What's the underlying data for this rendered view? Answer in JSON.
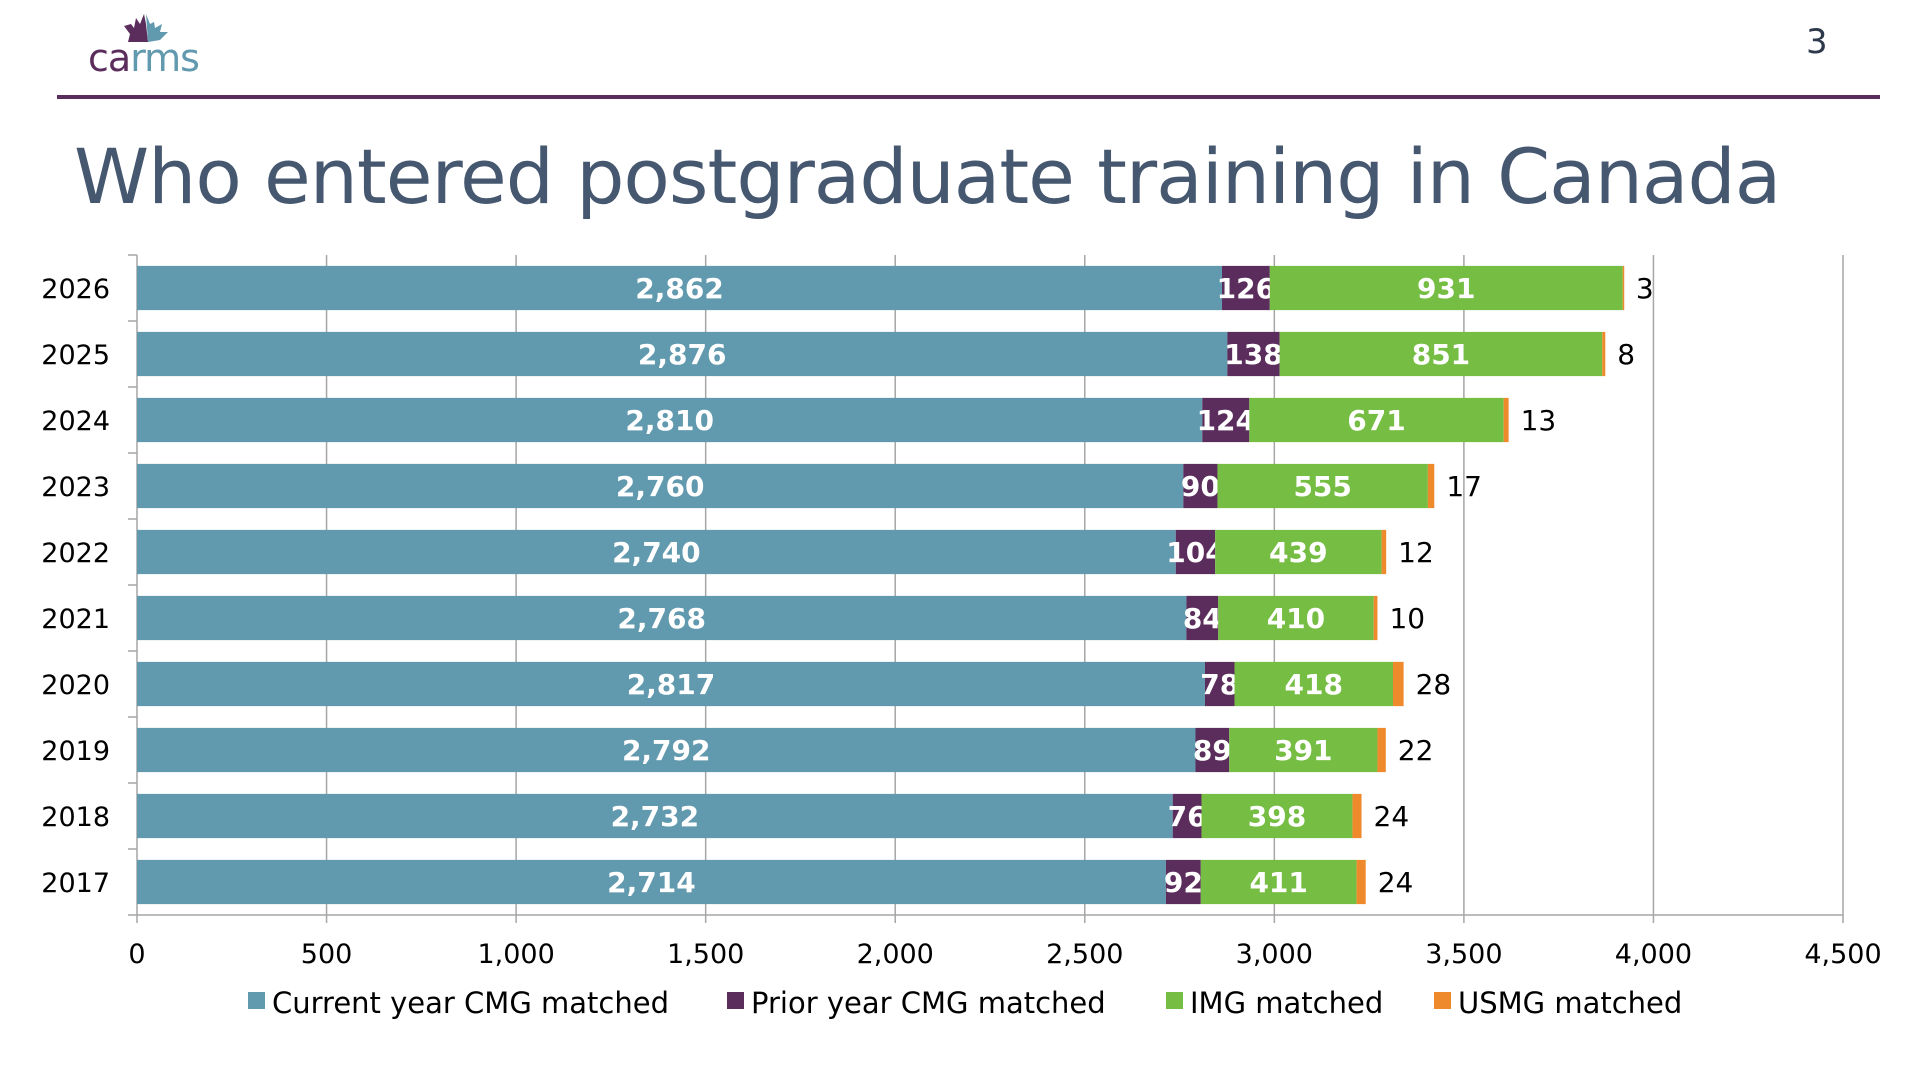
{
  "header": {
    "logo_text_a": "ca",
    "logo_text_b": "rms",
    "logo_icon": "maple-leaf-crown-icon",
    "page_number": "3",
    "title": "Who entered postgraduate training in Canada"
  },
  "colors": {
    "brand_purple": "#5B2D5C",
    "brand_teal": "#6199AE",
    "title": "#465770"
  },
  "chart_data": {
    "type": "bar",
    "orientation": "horizontal",
    "stacked": true,
    "title": "Who entered postgraduate training in Canada",
    "xlabel": "",
    "ylabel": "",
    "categories": [
      "2026",
      "2025",
      "2024",
      "2023",
      "2022",
      "2021",
      "2020",
      "2019",
      "2018",
      "2017"
    ],
    "series": [
      {
        "name": "Current year CMG matched",
        "color": "#6199AE",
        "label_inside": true,
        "values": [
          2862,
          2876,
          2810,
          2760,
          2740,
          2768,
          2817,
          2792,
          2732,
          2714
        ]
      },
      {
        "name": "Prior year CMG matched",
        "color": "#5B2D5C",
        "label_inside": true,
        "values": [
          126,
          138,
          124,
          90,
          104,
          84,
          78,
          89,
          76,
          92
        ]
      },
      {
        "name": "IMG matched",
        "color": "#76BD43",
        "label_inside": true,
        "values": [
          931,
          851,
          671,
          555,
          439,
          410,
          418,
          391,
          398,
          411
        ]
      },
      {
        "name": "USMG matched",
        "color": "#EF8A2C",
        "label_inside": false,
        "values": [
          3,
          8,
          13,
          17,
          12,
          10,
          28,
          22,
          24,
          24
        ]
      }
    ],
    "xlim": [
      0,
      4500
    ],
    "xticks": [
      0,
      500,
      1000,
      1500,
      2000,
      2500,
      3000,
      3500,
      4000,
      4500
    ],
    "xtick_labels": [
      "0",
      "500",
      "1,000",
      "1,500",
      "2,000",
      "2,500",
      "3,000",
      "3,500",
      "4,000",
      "4,500"
    ],
    "grid": "vertical",
    "legend_position": "bottom"
  }
}
